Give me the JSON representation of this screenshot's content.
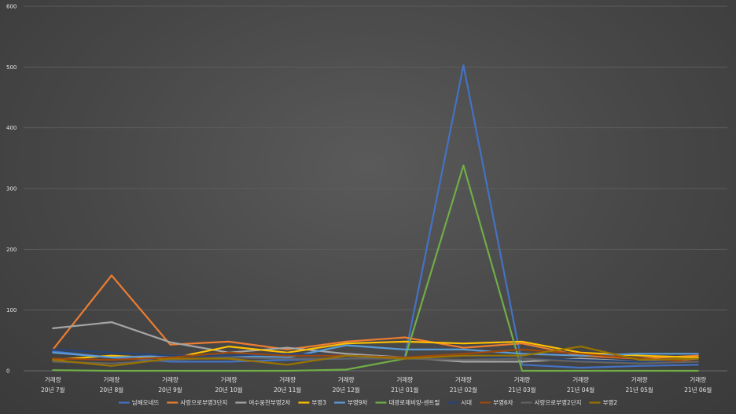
{
  "chart_data": {
    "type": "line",
    "title": "",
    "xlabel": "",
    "ylabel": "",
    "ylim": [
      0,
      600
    ],
    "yticks": [
      0,
      100,
      200,
      300,
      400,
      500,
      600
    ],
    "grid": true,
    "legend_position": "bottom",
    "categories": [
      [
        "거래량",
        "20년 7월"
      ],
      [
        "거래량",
        "20년 8월"
      ],
      [
        "거래량",
        "20년 9월"
      ],
      [
        "거래량",
        "20년 10월"
      ],
      [
        "거래량",
        "20년 11월"
      ],
      [
        "거래량",
        "20년 12월"
      ],
      [
        "거래량",
        "21년 01월"
      ],
      [
        "거래량",
        "21년 02월"
      ],
      [
        "거래량",
        "21년 03월"
      ],
      [
        "거래량",
        "21년 04월"
      ],
      [
        "거래량",
        "21년 05월"
      ],
      [
        "거래량",
        "21년 06월"
      ]
    ],
    "series": [
      {
        "name": "남해오네뜨",
        "color": "#4472C4",
        "values": [
          32,
          22,
          15,
          15,
          18,
          20,
          22,
          503,
          10,
          5,
          8,
          10
        ]
      },
      {
        "name": "사랑으로부영3단지",
        "color": "#ED7D31",
        "values": [
          35,
          157,
          43,
          48,
          35,
          48,
          55,
          38,
          45,
          25,
          20,
          25
        ]
      },
      {
        "name": "여수웅천부영2차",
        "color": "#A5A5A5",
        "values": [
          70,
          80,
          47,
          30,
          38,
          28,
          22,
          15,
          15,
          20,
          15,
          20
        ]
      },
      {
        "name": "부영3",
        "color": "#FFC000",
        "values": [
          18,
          25,
          20,
          40,
          30,
          45,
          48,
          45,
          48,
          30,
          25,
          22
        ]
      },
      {
        "name": "부영9차",
        "color": "#5B9BD5",
        "values": [
          30,
          22,
          25,
          25,
          22,
          42,
          35,
          35,
          28,
          25,
          28,
          28
        ]
      },
      {
        "name": "대광로제비앙-센트럴",
        "color": "#70AD47",
        "values": [
          1,
          0,
          0,
          0,
          0,
          2,
          20,
          338,
          0,
          0,
          0,
          0
        ]
      },
      {
        "name": "시대",
        "color": "#264478",
        "values": [
          35,
          30,
          25,
          25,
          28,
          25,
          22,
          25,
          20,
          18,
          15,
          15
        ]
      },
      {
        "name": "부영6차",
        "color": "#9E480E",
        "values": [
          20,
          18,
          22,
          30,
          25,
          25,
          22,
          28,
          35,
          28,
          20,
          15
        ]
      },
      {
        "name": "사랑으로부영2단지",
        "color": "#636363",
        "values": [
          15,
          12,
          18,
          22,
          20,
          20,
          20,
          18,
          20,
          15,
          12,
          15
        ]
      },
      {
        "name": "부영2",
        "color": "#997300",
        "values": [
          18,
          8,
          20,
          20,
          10,
          25,
          20,
          25,
          25,
          40,
          18,
          20
        ]
      }
    ]
  }
}
